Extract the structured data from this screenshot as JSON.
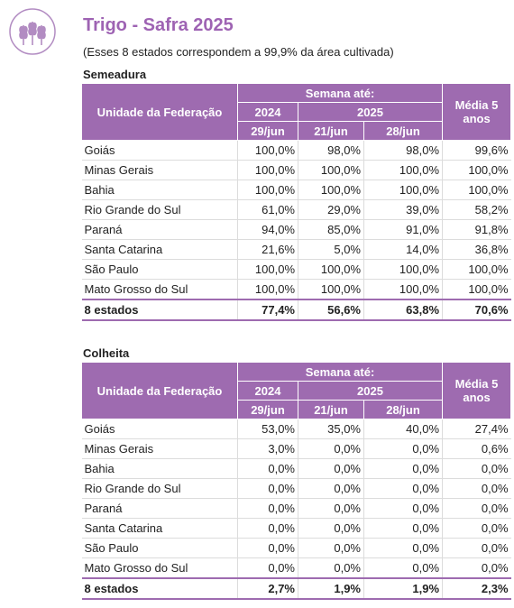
{
  "header": {
    "title": "Trigo - Safra 2025",
    "subtitle": "(Esses 8 estados correspondem a 99,9% da área cultivada)"
  },
  "sections": [
    {
      "title": "Semeadura",
      "columns": {
        "uf": "Unidade da Federação",
        "week": "Semana até:",
        "year1": "2024",
        "year2": "2025",
        "dates": [
          "29/jun",
          "21/jun",
          "28/jun"
        ],
        "avg": "Média  5 anos"
      },
      "rows": [
        [
          "Goiás",
          "100,0%",
          "98,0%",
          "98,0%",
          "99,6%"
        ],
        [
          "Minas Gerais",
          "100,0%",
          "100,0%",
          "100,0%",
          "100,0%"
        ],
        [
          "Bahia",
          "100,0%",
          "100,0%",
          "100,0%",
          "100,0%"
        ],
        [
          "Rio Grande do Sul",
          "61,0%",
          "29,0%",
          "39,0%",
          "58,2%"
        ],
        [
          "Paraná",
          "94,0%",
          "85,0%",
          "91,0%",
          "91,8%"
        ],
        [
          "Santa Catarina",
          "21,6%",
          "5,0%",
          "14,0%",
          "36,8%"
        ],
        [
          "São Paulo",
          "100,0%",
          "100,0%",
          "100,0%",
          "100,0%"
        ],
        [
          "Mato Grosso do Sul",
          "100,0%",
          "100,0%",
          "100,0%",
          "100,0%"
        ]
      ],
      "total": [
        "8 estados",
        "77,4%",
        "56,6%",
        "63,8%",
        "70,6%"
      ]
    },
    {
      "title": "Colheita",
      "columns": {
        "uf": "Unidade da Federação",
        "week": "Semana até:",
        "year1": "2024",
        "year2": "2025",
        "dates": [
          "29/jun",
          "21/jun",
          "28/jun"
        ],
        "avg": "Média  5 anos"
      },
      "rows": [
        [
          "Goiás",
          "53,0%",
          "35,0%",
          "40,0%",
          "27,4%"
        ],
        [
          "Minas Gerais",
          "3,0%",
          "0,0%",
          "0,0%",
          "0,6%"
        ],
        [
          "Bahia",
          "0,0%",
          "0,0%",
          "0,0%",
          "0,0%"
        ],
        [
          "Rio Grande do Sul",
          "0,0%",
          "0,0%",
          "0,0%",
          "0,0%"
        ],
        [
          "Paraná",
          "0,0%",
          "0,0%",
          "0,0%",
          "0,0%"
        ],
        [
          "Santa Catarina",
          "0,0%",
          "0,0%",
          "0,0%",
          "0,0%"
        ],
        [
          "São Paulo",
          "0,0%",
          "0,0%",
          "0,0%",
          "0,0%"
        ],
        [
          "Mato Grosso do Sul",
          "0,0%",
          "0,0%",
          "0,0%",
          "0,0%"
        ]
      ],
      "total": [
        "8 estados",
        "2,7%",
        "1,9%",
        "1,9%",
        "2,3%"
      ]
    }
  ]
}
